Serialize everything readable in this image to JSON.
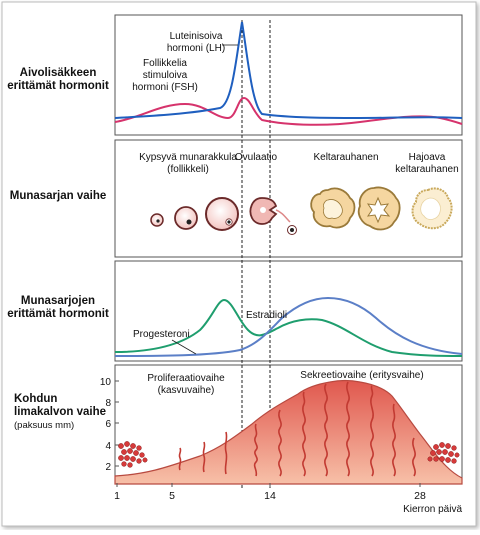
{
  "rows": {
    "hormones": {
      "title_line1": "Aivolisäkkeen",
      "title_line2": "erittämät hormonit"
    },
    "ovary": {
      "title": "Munasarjan vaihe"
    },
    "ovary_hormones": {
      "title_line1": "Munasarjojen",
      "title_line2": "erittämät hormonit"
    },
    "uterus": {
      "title_line1": "Kohdun",
      "title_line2": "limakalvon vaihe",
      "title_line3": "(paksuus mm)"
    }
  },
  "pituitary_labels": {
    "lh_line1": "Luteinisoiva",
    "lh_line2": "hormoni (LH)",
    "fsh_line1": "Follikkelia",
    "fsh_line2": "stimuloiva",
    "fsh_line3": "hormoni (FSH)"
  },
  "ovary_stages": {
    "follicle_line1": "Kypsyvä munarakkula",
    "follicle_line2": "(follikkeli)",
    "ovulation": "Ovulaatio",
    "corpus_luteum": "Keltarauhanen",
    "degenerating_line1": "Hajoava",
    "degenerating_line2": "keltarauhanen"
  },
  "ovarian_hormone_labels": {
    "estradiol": "Estradioli",
    "progesterone": "Progesteroni"
  },
  "uterine_phases": {
    "proliferative_line1": "Proliferaatiovaihe",
    "proliferative_line2": "(kasvuvaihe)",
    "secretory": "Sekreetiovaihe (eritysvaihe)"
  },
  "x_axis": {
    "label": "Kierron päivä",
    "ticks": [
      "1",
      "5",
      "14",
      "28"
    ]
  },
  "y_axis": {
    "ticks": [
      "2",
      "4",
      "6",
      "8",
      "10"
    ]
  },
  "colors": {
    "lh": "#1f5fbf",
    "fsh": "#d6336c",
    "estradiol": "#1f9e6e",
    "progesterone": "#5b7fc7",
    "endometrium": "#e8655c",
    "panel_border": "#555555"
  }
}
